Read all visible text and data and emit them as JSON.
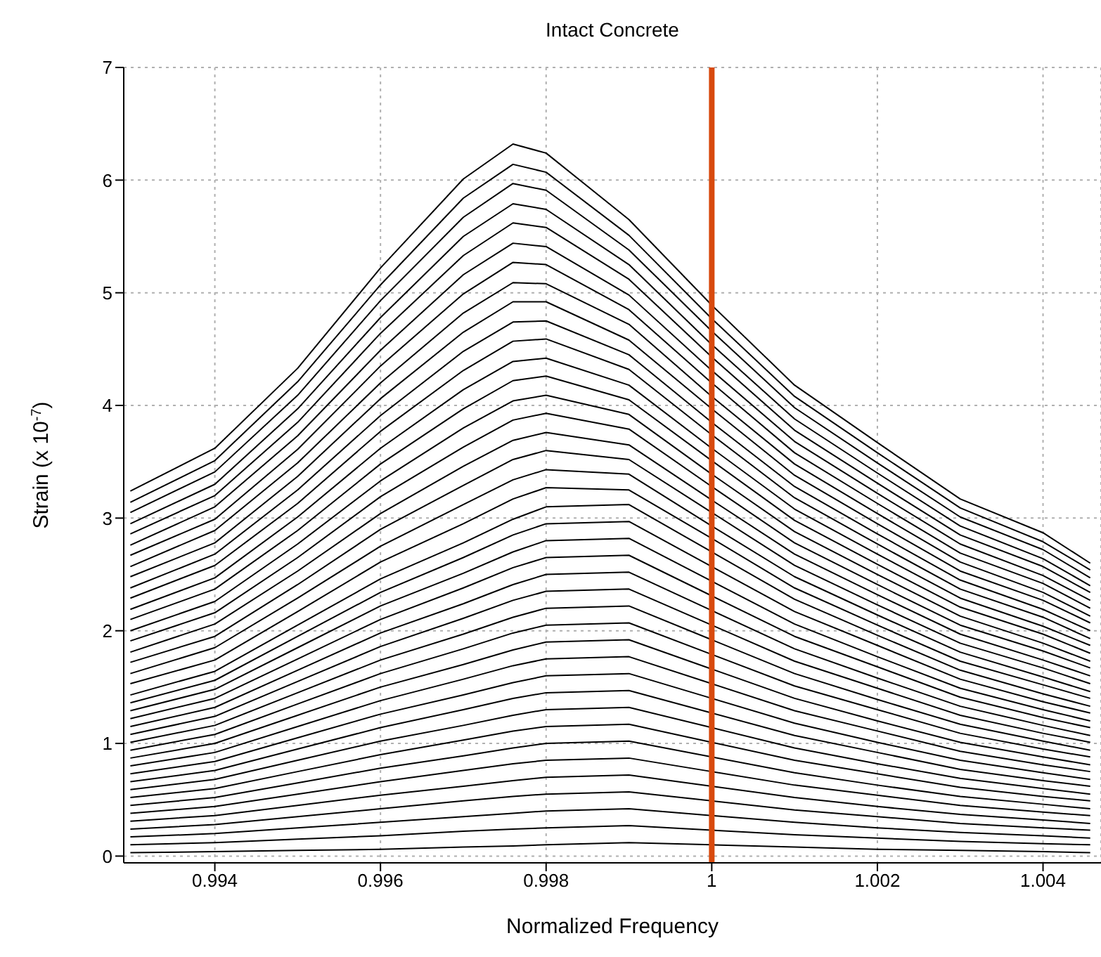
{
  "chart_data": {
    "type": "line",
    "title": "Intact Concrete",
    "xlabel": "Normalized Frequency",
    "ylabel": "Strain (x 10$^{-7}$)",
    "x": [
      0.99298,
      0.994,
      0.995,
      0.996,
      0.997,
      0.9976,
      0.998,
      0.999,
      1,
      1.001,
      1.002,
      1.003,
      1.004,
      1.00457
    ],
    "xlim": [
      0.9929,
      1.0047
    ],
    "xticks": [
      0.994,
      0.996,
      0.998,
      1,
      1.002,
      1.004
    ],
    "ylim": [
      -0.06,
      7
    ],
    "yticks": [
      0,
      1,
      2,
      3,
      4,
      5,
      6,
      7
    ],
    "grid": true,
    "line_style": "solid",
    "ref_lines": [
      {
        "axis": "x",
        "value": 1,
        "color": "#d84a0e"
      }
    ],
    "series": [
      {
        "color": "#000000",
        "values": [
          0.03,
          0.04,
          0.05,
          0.06,
          0.08,
          0.09,
          0.1,
          0.12,
          0.1,
          0.08,
          0.06,
          0.05,
          0.04,
          0.03
        ]
      },
      {
        "color": "#000000",
        "values": [
          0.1,
          0.12,
          0.15,
          0.18,
          0.22,
          0.24,
          0.25,
          0.27,
          0.23,
          0.19,
          0.16,
          0.13,
          0.11,
          0.1
        ]
      },
      {
        "color": "#000000",
        "values": [
          0.17,
          0.2,
          0.25,
          0.3,
          0.35,
          0.38,
          0.4,
          0.42,
          0.36,
          0.3,
          0.25,
          0.21,
          0.18,
          0.16
        ]
      },
      {
        "color": "#000000",
        "values": [
          0.24,
          0.28,
          0.35,
          0.42,
          0.49,
          0.53,
          0.55,
          0.57,
          0.49,
          0.41,
          0.35,
          0.29,
          0.25,
          0.23
        ]
      },
      {
        "color": "#000000",
        "values": [
          0.31,
          0.36,
          0.45,
          0.54,
          0.62,
          0.67,
          0.7,
          0.72,
          0.62,
          0.52,
          0.44,
          0.37,
          0.32,
          0.29
        ]
      },
      {
        "color": "#000000",
        "values": [
          0.38,
          0.44,
          0.55,
          0.66,
          0.76,
          0.82,
          0.85,
          0.87,
          0.75,
          0.63,
          0.54,
          0.45,
          0.39,
          0.36
        ]
      },
      {
        "color": "#000000",
        "values": [
          0.45,
          0.52,
          0.65,
          0.78,
          0.89,
          0.96,
          1.0,
          1.02,
          0.88,
          0.74,
          0.63,
          0.53,
          0.46,
          0.42
        ]
      },
      {
        "color": "#000000",
        "values": [
          0.52,
          0.6,
          0.75,
          0.9,
          1.03,
          1.11,
          1.15,
          1.17,
          1.01,
          0.85,
          0.73,
          0.61,
          0.53,
          0.49
        ]
      },
      {
        "color": "#000000",
        "values": [
          0.59,
          0.68,
          0.85,
          1.02,
          1.16,
          1.25,
          1.3,
          1.32,
          1.14,
          0.96,
          0.82,
          0.69,
          0.6,
          0.55
        ]
      },
      {
        "color": "#000000",
        "values": [
          0.66,
          0.76,
          0.95,
          1.14,
          1.3,
          1.4,
          1.45,
          1.47,
          1.27,
          1.07,
          0.92,
          0.77,
          0.67,
          0.62
        ]
      },
      {
        "color": "#000000",
        "values": [
          0.73,
          0.84,
          1.05,
          1.26,
          1.43,
          1.54,
          1.6,
          1.62,
          1.4,
          1.18,
          1.01,
          0.85,
          0.74,
          0.68
        ]
      },
      {
        "color": "#000000",
        "values": [
          0.8,
          0.92,
          1.15,
          1.38,
          1.57,
          1.69,
          1.75,
          1.77,
          1.53,
          1.29,
          1.11,
          0.93,
          0.81,
          0.75
        ]
      },
      {
        "color": "#000000",
        "values": [
          0.87,
          1.0,
          1.25,
          1.5,
          1.7,
          1.83,
          1.9,
          1.92,
          1.66,
          1.4,
          1.2,
          1.01,
          0.88,
          0.81
        ]
      },
      {
        "color": "#000000",
        "values": [
          0.94,
          1.08,
          1.35,
          1.62,
          1.84,
          1.98,
          2.05,
          2.07,
          1.79,
          1.51,
          1.3,
          1.09,
          0.95,
          0.88
        ]
      },
      {
        "color": "#000000",
        "values": [
          1.01,
          1.16,
          1.45,
          1.74,
          1.97,
          2.12,
          2.2,
          2.22,
          1.92,
          1.62,
          1.39,
          1.17,
          1.02,
          0.94
        ]
      },
      {
        "color": "#000000",
        "values": [
          1.08,
          1.24,
          1.55,
          1.86,
          2.11,
          2.27,
          2.35,
          2.37,
          2.05,
          1.73,
          1.49,
          1.25,
          1.09,
          1.01
        ]
      },
      {
        "color": "#000000",
        "values": [
          1.15,
          1.32,
          1.65,
          1.98,
          2.24,
          2.41,
          2.5,
          2.52,
          2.18,
          1.84,
          1.58,
          1.33,
          1.16,
          1.07
        ]
      },
      {
        "color": "#000000",
        "values": [
          1.22,
          1.4,
          1.75,
          2.1,
          2.38,
          2.56,
          2.65,
          2.67,
          2.31,
          1.95,
          1.68,
          1.41,
          1.23,
          1.14
        ]
      },
      {
        "color": "#000000",
        "values": [
          1.29,
          1.48,
          1.85,
          2.22,
          2.51,
          2.7,
          2.8,
          2.82,
          2.44,
          2.06,
          1.77,
          1.49,
          1.3,
          1.2
        ]
      },
      {
        "color": "#000000",
        "values": [
          1.36,
          1.56,
          1.95,
          2.34,
          2.65,
          2.85,
          2.95,
          2.97,
          2.57,
          2.17,
          1.87,
          1.57,
          1.37,
          1.27
        ]
      },
      {
        "color": "#000000",
        "values": [
          1.43,
          1.64,
          2.05,
          2.46,
          2.78,
          2.99,
          3.1,
          3.12,
          2.7,
          2.28,
          1.96,
          1.65,
          1.44,
          1.33
        ]
      },
      {
        "color": "#000000",
        "values": [
          1.53,
          1.74,
          2.17,
          2.61,
          2.95,
          3.17,
          3.27,
          3.25,
          2.82,
          2.38,
          2.05,
          1.73,
          1.52,
          1.4
        ]
      },
      {
        "color": "#000000",
        "values": [
          1.62,
          1.85,
          2.29,
          2.75,
          3.12,
          3.34,
          3.43,
          3.39,
          2.93,
          2.48,
          2.14,
          1.81,
          1.59,
          1.46
        ]
      },
      {
        "color": "#000000",
        "values": [
          1.72,
          1.95,
          2.41,
          2.9,
          3.29,
          3.52,
          3.6,
          3.52,
          3.05,
          2.58,
          2.23,
          1.89,
          1.67,
          1.53
        ]
      },
      {
        "color": "#000000",
        "values": [
          1.81,
          2.06,
          2.53,
          3.04,
          3.46,
          3.69,
          3.76,
          3.65,
          3.16,
          2.68,
          2.32,
          1.97,
          1.74,
          1.6
        ]
      },
      {
        "color": "#000000",
        "values": [
          1.91,
          2.16,
          2.65,
          3.19,
          3.63,
          3.87,
          3.93,
          3.79,
          3.28,
          2.78,
          2.41,
          2.05,
          1.82,
          1.67
        ]
      },
      {
        "color": "#000000",
        "values": [
          2.0,
          2.26,
          2.77,
          3.33,
          3.8,
          4.04,
          4.09,
          3.92,
          3.39,
          2.88,
          2.5,
          2.13,
          1.89,
          1.73
        ]
      },
      {
        "color": "#000000",
        "values": [
          2.1,
          2.37,
          2.89,
          3.48,
          3.97,
          4.22,
          4.26,
          4.05,
          3.51,
          2.98,
          2.59,
          2.21,
          1.97,
          1.8
        ]
      },
      {
        "color": "#000000",
        "values": [
          2.19,
          2.47,
          3.01,
          3.62,
          4.14,
          4.39,
          4.42,
          4.18,
          3.62,
          3.08,
          2.68,
          2.29,
          2.04,
          1.87
        ]
      },
      {
        "color": "#000000",
        "values": [
          2.29,
          2.58,
          3.13,
          3.77,
          4.31,
          4.57,
          4.59,
          4.32,
          3.74,
          3.18,
          2.77,
          2.37,
          2.12,
          1.93
        ]
      },
      {
        "color": "#000000",
        "values": [
          2.38,
          2.68,
          3.25,
          3.91,
          4.48,
          4.74,
          4.75,
          4.45,
          3.85,
          3.28,
          2.86,
          2.45,
          2.19,
          2.0
        ]
      },
      {
        "color": "#000000",
        "values": [
          2.48,
          2.78,
          3.37,
          4.06,
          4.65,
          4.92,
          4.92,
          4.58,
          3.97,
          3.38,
          2.95,
          2.53,
          2.27,
          2.07
        ]
      },
      {
        "color": "#000000",
        "values": [
          2.57,
          2.89,
          3.49,
          4.2,
          4.82,
          5.09,
          5.08,
          4.72,
          4.08,
          3.48,
          3.04,
          2.61,
          2.34,
          2.13
        ]
      },
      {
        "color": "#000000",
        "values": [
          2.67,
          2.99,
          3.61,
          4.35,
          4.99,
          5.27,
          5.25,
          4.85,
          4.2,
          3.58,
          3.13,
          2.69,
          2.42,
          2.2
        ]
      },
      {
        "color": "#000000",
        "values": [
          2.76,
          3.1,
          3.73,
          4.49,
          5.16,
          5.44,
          5.41,
          4.98,
          4.31,
          3.68,
          3.22,
          2.77,
          2.49,
          2.27
        ]
      },
      {
        "color": "#000000",
        "values": [
          2.86,
          3.2,
          3.85,
          4.64,
          5.33,
          5.62,
          5.58,
          5.12,
          4.43,
          3.78,
          3.31,
          2.85,
          2.57,
          2.34
        ]
      },
      {
        "color": "#000000",
        "values": [
          2.95,
          3.3,
          3.97,
          4.78,
          5.5,
          5.79,
          5.74,
          5.25,
          4.54,
          3.88,
          3.4,
          2.93,
          2.64,
          2.4
        ]
      },
      {
        "color": "#000000",
        "values": [
          3.05,
          3.41,
          4.09,
          4.93,
          5.67,
          5.97,
          5.91,
          5.38,
          4.66,
          3.98,
          3.49,
          3.01,
          2.72,
          2.47
        ]
      },
      {
        "color": "#000000",
        "values": [
          3.14,
          3.51,
          4.21,
          5.07,
          5.84,
          6.14,
          6.07,
          5.51,
          4.77,
          4.08,
          3.58,
          3.09,
          2.79,
          2.54
        ]
      },
      {
        "color": "#000000",
        "values": [
          3.24,
          3.62,
          4.33,
          5.22,
          6.01,
          6.32,
          6.24,
          5.65,
          4.89,
          4.18,
          3.67,
          3.17,
          2.87,
          2.6
        ]
      }
    ]
  }
}
